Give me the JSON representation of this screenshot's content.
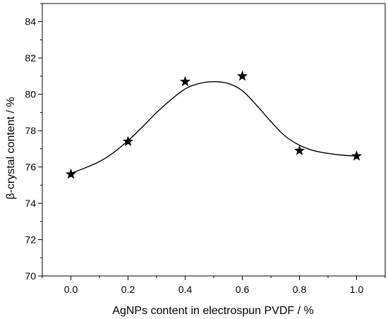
{
  "chart_data": {
    "type": "scatter",
    "title": "",
    "xlabel": "AgNPs content in electrospun PVDF / %",
    "ylabel": "β-crystal content / %",
    "xlim": [
      -0.1,
      1.1
    ],
    "ylim": [
      70,
      85
    ],
    "x_ticks": [
      0.0,
      0.2,
      0.4,
      0.6,
      0.8,
      1.0
    ],
    "x_tick_labels": [
      "0.0",
      "0.2",
      "0.4",
      "0.6",
      "0.8",
      "1.0"
    ],
    "y_ticks": [
      70,
      72,
      74,
      76,
      78,
      80,
      82,
      84
    ],
    "y_tick_labels": [
      "70",
      "72",
      "74",
      "76",
      "78",
      "80",
      "82",
      "84"
    ],
    "grid": false,
    "legend": "none",
    "marker": "star",
    "series": [
      {
        "x": [
          0.0,
          0.2,
          0.4,
          0.6,
          0.8,
          1.0
        ],
        "y": [
          75.6,
          77.4,
          80.7,
          81.0,
          76.9,
          76.6
        ]
      }
    ],
    "fit_curve": {
      "x": [
        0.0,
        0.05,
        0.1,
        0.15,
        0.2,
        0.25,
        0.3,
        0.35,
        0.4,
        0.45,
        0.5,
        0.55,
        0.6,
        0.65,
        0.7,
        0.75,
        0.8,
        0.85,
        0.9,
        0.95,
        1.0
      ],
      "y": [
        75.65,
        75.95,
        76.3,
        76.8,
        77.45,
        78.2,
        79.0,
        79.7,
        80.3,
        80.6,
        80.7,
        80.6,
        80.2,
        79.4,
        78.5,
        77.7,
        77.2,
        76.9,
        76.75,
        76.65,
        76.6
      ]
    },
    "colors": {
      "marker": "#000000",
      "line": "#000000",
      "axis": "#000000"
    }
  }
}
